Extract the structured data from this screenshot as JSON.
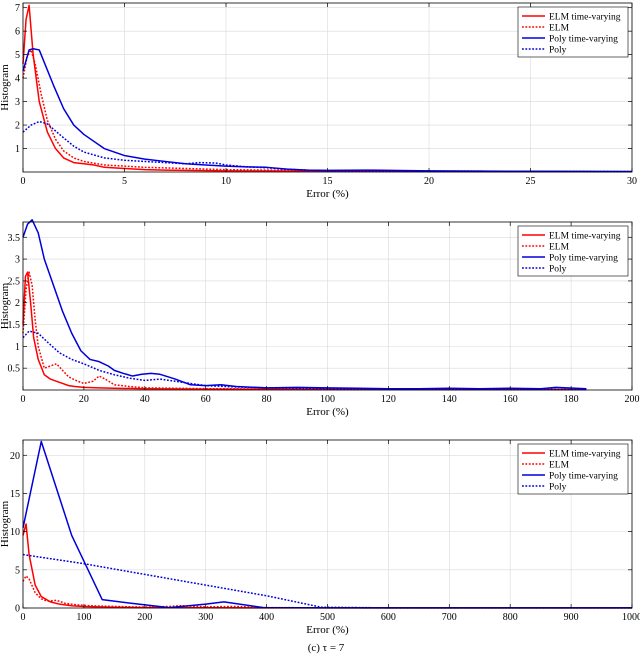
{
  "caption": "(c) τ = 7",
  "chart_data": [
    {
      "type": "line",
      "xlabel": "Error (%)",
      "ylabel": "Histogram",
      "xlim": [
        0,
        30
      ],
      "ylim": [
        0,
        7.2
      ],
      "xticks": [
        0,
        5,
        10,
        15,
        20,
        25,
        30
      ],
      "yticks": [
        1,
        2,
        3,
        4,
        5,
        6,
        7
      ],
      "grid": true,
      "legend_position": "top-right",
      "series": [
        {
          "name": "ELM time-varying",
          "color": "#ff0000",
          "style": "solid",
          "x": [
            0,
            0.15,
            0.3,
            0.5,
            0.8,
            1.2,
            1.6,
            2.0,
            2.5,
            3.0,
            3.5,
            4.0,
            5.0,
            6.0,
            7.0,
            8.0,
            10,
            12,
            15,
            20,
            25,
            30
          ],
          "y": [
            4.6,
            6.5,
            7.1,
            5.0,
            3.0,
            1.7,
            1.0,
            0.6,
            0.4,
            0.35,
            0.3,
            0.2,
            0.15,
            0.1,
            0.08,
            0.07,
            0.05,
            0.04,
            0.03,
            0.02,
            0.01,
            0.01
          ]
        },
        {
          "name": "ELM",
          "color": "#ff0000",
          "style": "dotted",
          "x": [
            0,
            0.2,
            0.4,
            0.6,
            0.9,
            1.2,
            1.6,
            2.0,
            2.5,
            3.0,
            4.0,
            5.0,
            6.0,
            8.0,
            10,
            12,
            15,
            20,
            25,
            30
          ],
          "y": [
            4.0,
            4.9,
            5.2,
            4.6,
            3.3,
            2.2,
            1.4,
            0.9,
            0.6,
            0.45,
            0.3,
            0.25,
            0.2,
            0.15,
            0.1,
            0.08,
            0.05,
            0.03,
            0.02,
            0.01
          ]
        },
        {
          "name": "Poly time-varying",
          "color": "#0000dd",
          "style": "solid",
          "x": [
            0,
            0.3,
            0.5,
            0.8,
            1.5,
            2.0,
            2.5,
            3.0,
            4.0,
            5.0,
            6.0,
            7.0,
            8.0,
            9.0,
            10,
            11,
            12,
            13,
            14,
            15,
            17,
            20,
            25,
            30
          ],
          "y": [
            4.3,
            5.2,
            5.25,
            5.2,
            3.7,
            2.7,
            2.0,
            1.6,
            1.0,
            0.7,
            0.55,
            0.45,
            0.35,
            0.3,
            0.25,
            0.22,
            0.2,
            0.12,
            0.08,
            0.07,
            0.08,
            0.05,
            0.03,
            0.02
          ]
        },
        {
          "name": "Poly",
          "color": "#0000dd",
          "style": "dotted",
          "x": [
            0,
            0.4,
            0.8,
            1.2,
            1.8,
            2.5,
            3.0,
            4.0,
            5.0,
            6.0,
            7.0,
            8.0,
            8.7,
            9.5,
            10,
            11,
            12,
            13,
            14,
            15,
            17,
            20,
            25,
            30
          ],
          "y": [
            1.7,
            2.0,
            2.15,
            2.05,
            1.6,
            1.1,
            0.85,
            0.6,
            0.5,
            0.45,
            0.4,
            0.35,
            0.4,
            0.38,
            0.3,
            0.22,
            0.18,
            0.12,
            0.08,
            0.06,
            0.05,
            0.04,
            0.03,
            0.02
          ]
        }
      ]
    },
    {
      "type": "line",
      "xlabel": "Error (%)",
      "ylabel": "Histogram",
      "xlim": [
        0,
        200
      ],
      "ylim": [
        0,
        3.85
      ],
      "xticks": [
        0,
        20,
        40,
        60,
        80,
        100,
        120,
        140,
        160,
        180,
        200
      ],
      "yticks": [
        0.5,
        1,
        1.5,
        2,
        2.5,
        3,
        3.5
      ],
      "grid": true,
      "legend_position": "top-right",
      "series": [
        {
          "name": "ELM time-varying",
          "color": "#ff0000",
          "style": "solid",
          "x": [
            0,
            0.8,
            1.5,
            2.5,
            3.5,
            5,
            7,
            9,
            11,
            13,
            15,
            17,
            20,
            25,
            30,
            40,
            60,
            100,
            150,
            185
          ],
          "y": [
            1.5,
            2.6,
            2.7,
            2.0,
            1.2,
            0.7,
            0.35,
            0.25,
            0.2,
            0.15,
            0.1,
            0.08,
            0.06,
            0.05,
            0.04,
            0.03,
            0.02,
            0.01,
            0.01,
            0.01
          ]
        },
        {
          "name": "ELM",
          "color": "#ff0000",
          "style": "dotted",
          "x": [
            0,
            1,
            2,
            3,
            4,
            5,
            7,
            9,
            11,
            13,
            15,
            18,
            20,
            23,
            25,
            27,
            30,
            35,
            40,
            60,
            100,
            150,
            185
          ],
          "y": [
            1.3,
            2.3,
            2.7,
            2.4,
            1.6,
            1.0,
            0.5,
            0.55,
            0.6,
            0.45,
            0.3,
            0.2,
            0.15,
            0.2,
            0.32,
            0.25,
            0.12,
            0.08,
            0.05,
            0.03,
            0.02,
            0.01,
            0.01
          ]
        },
        {
          "name": "Poly time-varying",
          "color": "#0000dd",
          "style": "solid",
          "x": [
            0,
            1.5,
            3,
            5,
            7,
            10,
            13,
            16,
            19,
            22,
            25,
            28,
            30,
            33,
            36,
            39,
            42,
            45,
            50,
            55,
            60,
            65,
            70,
            80,
            90,
            100,
            110,
            120,
            130,
            140,
            150,
            160,
            170,
            175,
            185
          ],
          "y": [
            3.5,
            3.8,
            3.9,
            3.6,
            3.0,
            2.4,
            1.8,
            1.3,
            0.9,
            0.7,
            0.65,
            0.55,
            0.45,
            0.38,
            0.32,
            0.36,
            0.38,
            0.36,
            0.25,
            0.12,
            0.1,
            0.12,
            0.08,
            0.05,
            0.06,
            0.05,
            0.04,
            0.03,
            0.03,
            0.04,
            0.03,
            0.04,
            0.03,
            0.06,
            0.03
          ]
        },
        {
          "name": "Poly",
          "color": "#0000dd",
          "style": "dotted",
          "x": [
            0,
            2,
            5,
            8,
            12,
            16,
            20,
            25,
            30,
            35,
            40,
            45,
            50,
            55,
            60,
            70,
            80,
            100,
            120,
            150,
            185
          ],
          "y": [
            1.2,
            1.35,
            1.3,
            1.1,
            0.85,
            0.7,
            0.6,
            0.45,
            0.35,
            0.27,
            0.22,
            0.25,
            0.2,
            0.15,
            0.1,
            0.07,
            0.05,
            0.03,
            0.02,
            0.02,
            0.01
          ]
        }
      ]
    },
    {
      "type": "line",
      "xlabel": "Error (%)",
      "ylabel": "Histogram",
      "xlim": [
        0,
        1000
      ],
      "ylim": [
        0,
        22
      ],
      "xticks": [
        0,
        100,
        200,
        300,
        400,
        500,
        600,
        700,
        800,
        900,
        1000
      ],
      "yticks": [
        0,
        5,
        10,
        15,
        20
      ],
      "grid": true,
      "legend_position": "top-right",
      "series": [
        {
          "name": "ELM time-varying",
          "color": "#ff0000",
          "style": "solid",
          "x": [
            0,
            5,
            10,
            20,
            30,
            45,
            60,
            80,
            100,
            150,
            200,
            300,
            400,
            500,
            600,
            800,
            1000
          ],
          "y": [
            9.5,
            11.0,
            7.0,
            3.0,
            1.5,
            0.8,
            0.5,
            0.3,
            0.2,
            0.1,
            0.05,
            0.03,
            0.02,
            0.01,
            0.01,
            0.01,
            0.01
          ]
        },
        {
          "name": "ELM",
          "color": "#ff0000",
          "style": "dotted",
          "x": [
            0,
            5,
            10,
            20,
            30,
            40,
            55,
            70,
            90,
            110,
            130,
            150,
            180,
            200,
            240,
            260,
            300,
            350,
            380,
            400,
            500,
            600,
            800,
            1000
          ],
          "y": [
            3.5,
            4.2,
            3.8,
            2.0,
            1.2,
            0.9,
            1.0,
            0.6,
            0.4,
            0.3,
            0.25,
            0.2,
            0.15,
            0.12,
            0.2,
            0.3,
            0.15,
            0.2,
            0.1,
            0.05,
            0.03,
            0.02,
            0.01,
            0.01
          ]
        },
        {
          "name": "Poly time-varying",
          "color": "#0000dd",
          "style": "solid",
          "x": [
            0,
            30,
            80,
            130,
            190,
            240,
            300,
            330,
            395,
            500,
            600,
            800,
            1000
          ],
          "y": [
            10.5,
            21.8,
            9.5,
            1.1,
            0.5,
            0.05,
            0.5,
            0.8,
            0.05,
            0.02,
            0.02,
            0.02,
            0.02
          ]
        },
        {
          "name": "Poly",
          "color": "#0000dd",
          "style": "dotted",
          "x": [
            0,
            100,
            200,
            300,
            400,
            490,
            600,
            800,
            1000
          ],
          "y": [
            7.0,
            5.8,
            4.4,
            3.0,
            1.6,
            0.1,
            0.02,
            0.02,
            0.02
          ]
        }
      ]
    }
  ]
}
